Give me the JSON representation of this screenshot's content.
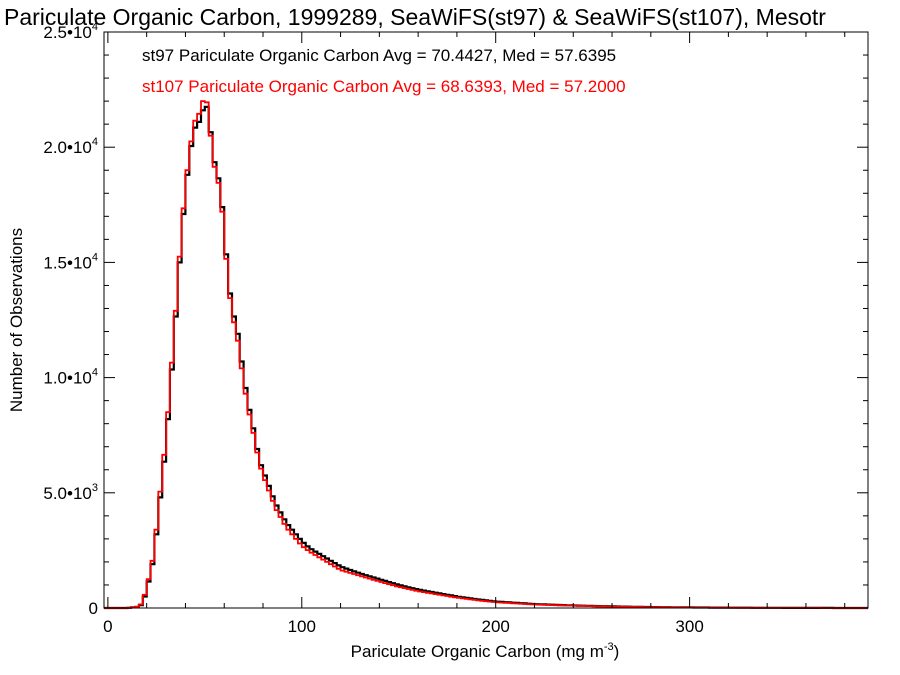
{
  "chart_data": {
    "type": "line",
    "title": "Pariculate Organic Carbon, 1999289, SeaWiFS(st97) & SeaWiFS(st107), Mesotr",
    "xlabel_main": "Pariculate Organic Carbon (mg m",
    "xlabel_sup": "-3",
    "xlabel_close": ")",
    "ylabel": "Number of Observations",
    "xlim": [
      -2,
      392
    ],
    "ylim": [
      0,
      25000
    ],
    "x_ticks": [
      {
        "value": 0,
        "label": "0"
      },
      {
        "value": 100,
        "label": "100"
      },
      {
        "value": 200,
        "label": "200"
      },
      {
        "value": 300,
        "label": "300"
      }
    ],
    "y_ticks": [
      {
        "value": 0,
        "mant": "0",
        "exp": ""
      },
      {
        "value": 5000,
        "mant": "5.0•10",
        "exp": "3"
      },
      {
        "value": 10000,
        "mant": "1.0•10",
        "exp": "4"
      },
      {
        "value": 15000,
        "mant": "1.5•10",
        "exp": "4"
      },
      {
        "value": 20000,
        "mant": "2.0•10",
        "exp": "4"
      },
      {
        "value": 25000,
        "mant": "2.5•10",
        "exp": "4"
      }
    ],
    "legend_placement": "top-left",
    "step": 2,
    "series": [
      {
        "name": "st97 Pariculate Organic Carbon Avg = 70.4427, Med = 57.6395",
        "color": "#000000",
        "x": [
          0,
          10,
          16,
          18,
          20,
          22,
          24,
          26,
          28,
          30,
          32,
          34,
          36,
          38,
          40,
          42,
          44,
          46,
          48,
          50,
          52,
          54,
          56,
          58,
          60,
          62,
          64,
          66,
          68,
          70,
          72,
          74,
          76,
          78,
          80,
          82,
          84,
          86,
          88,
          90,
          92,
          94,
          96,
          98,
          100,
          104,
          108,
          112,
          116,
          120,
          130,
          140,
          150,
          160,
          170,
          180,
          190,
          200,
          220,
          240,
          260,
          280,
          300,
          320,
          340,
          360,
          392
        ],
        "values": [
          0,
          0,
          50,
          200,
          800,
          1500,
          2300,
          4100,
          5500,
          7200,
          9200,
          11500,
          13800,
          16200,
          18000,
          19600,
          20500,
          21200,
          21000,
          22200,
          21300,
          20000,
          18700,
          18600,
          16200,
          14500,
          12800,
          12500,
          11300,
          10100,
          9000,
          8200,
          7400,
          6400,
          6000,
          5500,
          5100,
          4600,
          4300,
          4000,
          3700,
          3500,
          3300,
          3100,
          2900,
          2600,
          2400,
          2200,
          2000,
          1800,
          1500,
          1250,
          1000,
          800,
          650,
          500,
          380,
          280,
          170,
          110,
          70,
          40,
          25,
          15,
          8,
          4,
          0
        ]
      },
      {
        "name": "st107 Pariculate Organic Carbon Avg = 68.6393, Med = 57.2000",
        "color": "#ff0000",
        "x": [
          0,
          10,
          16,
          18,
          20,
          22,
          24,
          26,
          28,
          30,
          32,
          34,
          36,
          38,
          40,
          42,
          44,
          46,
          48,
          50,
          52,
          54,
          56,
          58,
          60,
          62,
          64,
          66,
          68,
          70,
          72,
          74,
          76,
          78,
          80,
          82,
          84,
          86,
          88,
          90,
          92,
          94,
          96,
          98,
          100,
          104,
          108,
          112,
          116,
          120,
          130,
          140,
          150,
          160,
          170,
          180,
          190,
          200,
          220,
          240,
          260,
          280,
          300,
          320,
          340,
          360,
          392
        ],
        "values": [
          0,
          0,
          60,
          250,
          900,
          1600,
          2500,
          4300,
          5800,
          7500,
          9500,
          11800,
          14000,
          16500,
          18200,
          19800,
          20700,
          21600,
          21300,
          22700,
          21200,
          19800,
          18500,
          18400,
          16000,
          14300,
          12600,
          12200,
          11000,
          9800,
          8800,
          8000,
          7200,
          6300,
          5800,
          5300,
          4900,
          4400,
          4100,
          3800,
          3500,
          3300,
          3100,
          2900,
          2700,
          2450,
          2250,
          2050,
          1850,
          1650,
          1400,
          1150,
          920,
          730,
          590,
          450,
          340,
          250,
          150,
          100,
          60,
          35,
          20,
          12,
          6,
          3,
          0
        ]
      }
    ]
  }
}
